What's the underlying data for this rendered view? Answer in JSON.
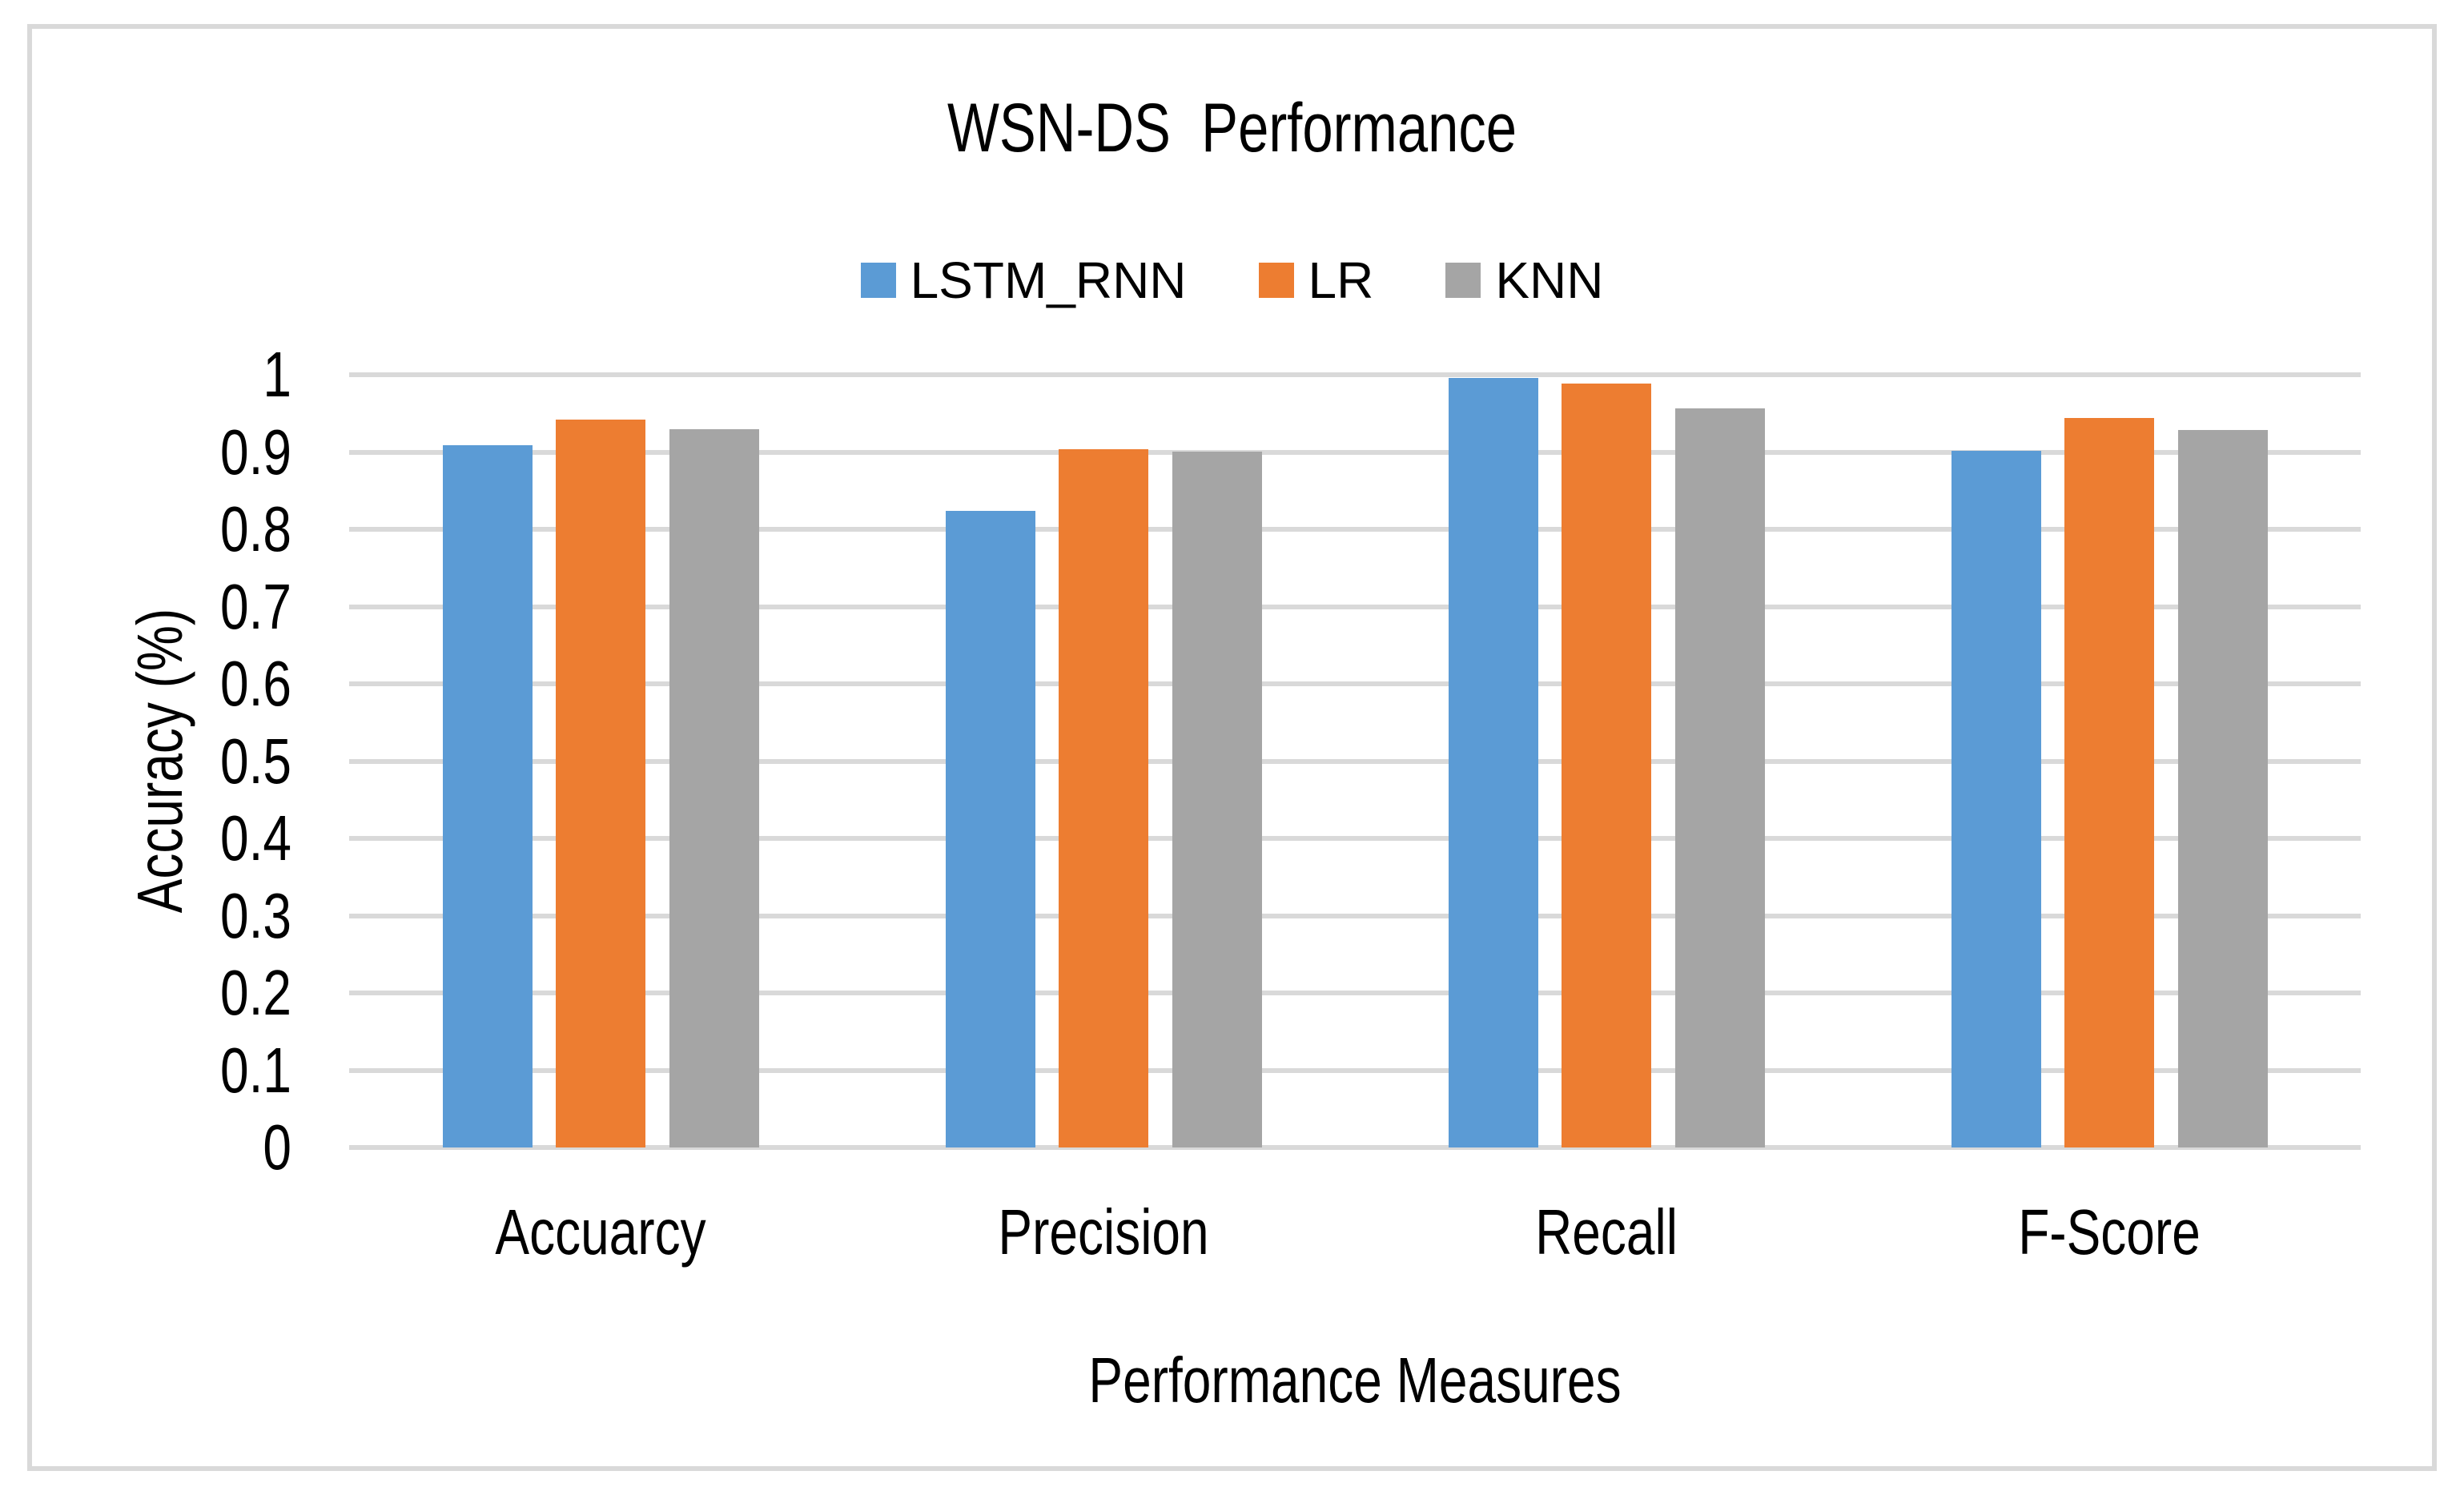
{
  "frame": {
    "border_color": "#D9D9D9"
  },
  "chart_data": {
    "type": "bar",
    "title": "WSN-DS  Performance",
    "xlabel": "Performance Measures",
    "ylabel": "Accuracy (%)",
    "categories": [
      "Accuarcy",
      "Precision",
      "Recall",
      "F-Score"
    ],
    "series": [
      {
        "name": "LSTM_RNN",
        "color": "#5B9BD5",
        "values": [
          0.909,
          0.824,
          0.996,
          0.902
        ]
      },
      {
        "name": "LR",
        "color": "#ED7D31",
        "values": [
          0.942,
          0.904,
          0.989,
          0.944
        ]
      },
      {
        "name": "KNN",
        "color": "#A5A5A5",
        "values": [
          0.93,
          0.901,
          0.957,
          0.929
        ]
      }
    ],
    "ylim": [
      0,
      1
    ],
    "ytick_step": 0.1,
    "ytick_labels": [
      "0",
      "0.1",
      "0.2",
      "0.3",
      "0.4",
      "0.5",
      "0.6",
      "0.7",
      "0.8",
      "0.9",
      "1"
    ],
    "grid": true,
    "gridline_color": "#D9D9D9",
    "legend_position": "top",
    "text_color": "#000000",
    "background_color": "#FFFFFF"
  }
}
